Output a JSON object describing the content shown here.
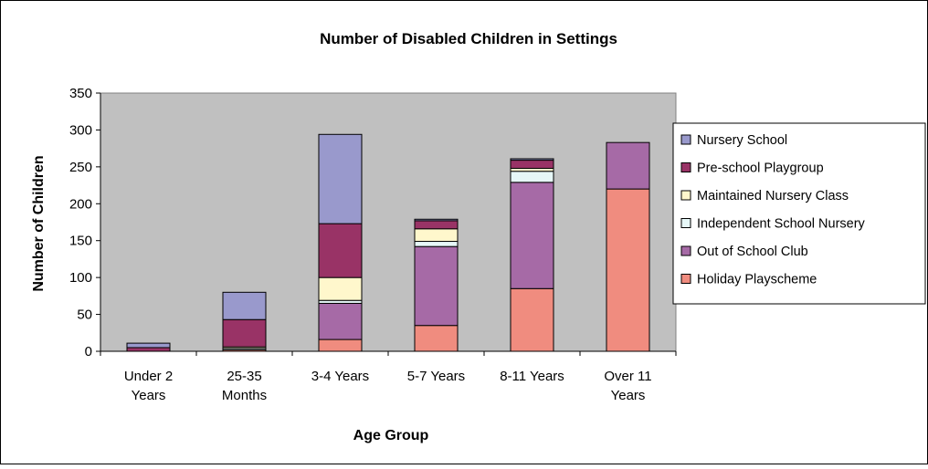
{
  "chart_data": {
    "type": "bar",
    "stacked": true,
    "title": "Number of Disabled Children in Settings",
    "xlabel": "Age Group",
    "ylabel": "Number of Children",
    "ylim": [
      0,
      350
    ],
    "yticks": [
      0,
      50,
      100,
      150,
      200,
      250,
      300,
      350
    ],
    "categories": [
      [
        "Under 2",
        "Years"
      ],
      [
        "25-35",
        "Months"
      ],
      [
        "3-4 Years"
      ],
      [
        "5-7 Years"
      ],
      [
        "8-11 Years"
      ],
      [
        "Over 11",
        "Years"
      ]
    ],
    "series": [
      {
        "name": "Holiday Playscheme",
        "color": "#f08c7f",
        "values": [
          0,
          2,
          16,
          35,
          85,
          220
        ]
      },
      {
        "name": "Out of School Club",
        "color": "#a66aa6",
        "values": [
          0,
          0,
          49,
          107,
          144,
          63
        ]
      },
      {
        "name": "Independent School Nursery",
        "color": "#e6f7f7",
        "values": [
          0,
          2,
          4,
          7,
          15,
          0
        ]
      },
      {
        "name": "Maintained Nursery Class",
        "color": "#fff7cc",
        "values": [
          0,
          2,
          31,
          17,
          4,
          0
        ]
      },
      {
        "name": "Pre-school Playgroup",
        "color": "#993366",
        "values": [
          5,
          37,
          73,
          11,
          11,
          0
        ]
      },
      {
        "name": "Nursery School",
        "color": "#9999cc",
        "values": [
          6,
          37,
          121,
          2,
          2,
          0
        ]
      }
    ],
    "legend_position": "right",
    "grid": false,
    "plot_background": "#c0c0c0"
  }
}
